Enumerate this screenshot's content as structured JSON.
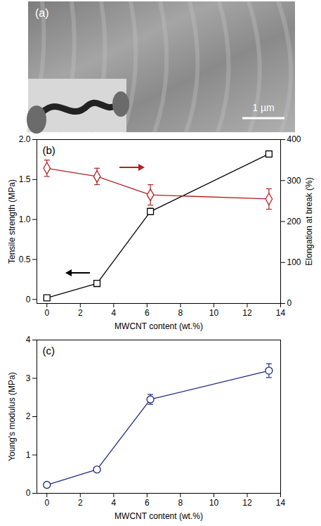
{
  "chart_data": [
    {
      "type": "image",
      "panel_label": "(a)",
      "scale_bar_label": "1 µm"
    },
    {
      "type": "line",
      "panel_label": "(b)",
      "x_label": "MWCNT content (wt.%)",
      "y_label": "Tensile strength (MPa)",
      "y2_label": "Elongation at break (%)",
      "x": [
        0,
        3,
        6.2,
        13.3
      ],
      "xlim": [
        -0.6,
        14
      ],
      "xticks": [
        0,
        2,
        4,
        6,
        8,
        10,
        12,
        14
      ],
      "ylim": [
        -0.05,
        2.0
      ],
      "yticks": [
        0,
        0.5,
        {
          "value": 1,
          "label": "1.0"
        },
        1.5,
        {
          "value": 2,
          "label": "2.0"
        }
      ],
      "y2lim": [
        0,
        400
      ],
      "y2ticks": [
        0,
        100,
        200,
        300,
        400
      ],
      "series": [
        {
          "color": "#000000",
          "marker": "square",
          "values": [
            0.02,
            0.2,
            1.1,
            1.82
          ],
          "errors": [
            0.01,
            0.03,
            0.04,
            0.04
          ]
        },
        {
          "axis": "y2",
          "color": "#b22222",
          "marker": "diamond",
          "values": [
            330,
            310,
            265,
            255
          ],
          "errors": [
            20,
            20,
            25,
            25
          ]
        }
      ]
    },
    {
      "type": "line",
      "panel_label": "(c)",
      "x_label": "MWCNT content (wt.%)",
      "y_label": "Young's modulus (MPa)",
      "x": [
        0,
        3,
        6.2,
        13.3
      ],
      "xlim": [
        -0.6,
        14
      ],
      "xticks": [
        0,
        2,
        4,
        6,
        8,
        10,
        12,
        14
      ],
      "ylim": [
        0,
        4
      ],
      "yticks": [
        0,
        1,
        2,
        3,
        4
      ],
      "series": [
        {
          "color": "#1f2a80",
          "marker": "circle",
          "values": [
            0.22,
            0.62,
            2.45,
            3.2
          ],
          "errors": [
            0.05,
            0.05,
            0.13,
            0.18
          ]
        }
      ]
    }
  ]
}
